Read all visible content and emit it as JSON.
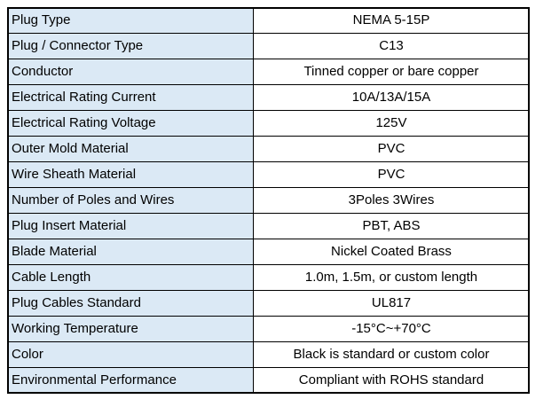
{
  "colors": {
    "label_bg": "#dbe9f5",
    "value_bg": "#ffffff",
    "border": "#000000"
  },
  "rows": [
    {
      "label": "Plug Type",
      "value": "NEMA 5-15P"
    },
    {
      "label": "Plug / Connector Type",
      "value": "C13"
    },
    {
      "label": "Conductor",
      "value": "Tinned copper or bare copper"
    },
    {
      "label": "Electrical Rating Current",
      "value": "10A/13A/15A"
    },
    {
      "label": "Electrical Rating Voltage",
      "value": "125V"
    },
    {
      "label": "Outer Mold Material",
      "value": "PVC"
    },
    {
      "label": "Wire Sheath Material",
      "value": "PVC"
    },
    {
      "label": "Number of Poles and Wires",
      "value": "3Poles 3Wires"
    },
    {
      "label": "Plug Insert Material",
      "value": "PBT, ABS"
    },
    {
      "label": "Blade Material",
      "value": "Nickel Coated Brass"
    },
    {
      "label": "Cable Length",
      "value": "1.0m, 1.5m, or custom length"
    },
    {
      "label": "Plug Cables Standard",
      "value": "UL817"
    },
    {
      "label": "Working Temperature",
      "value": "-15°C~+70°C"
    },
    {
      "label": "Color",
      "value": "Black is standard or custom color"
    },
    {
      "label": "Environmental Performance",
      "value": "Compliant with ROHS standard"
    }
  ]
}
